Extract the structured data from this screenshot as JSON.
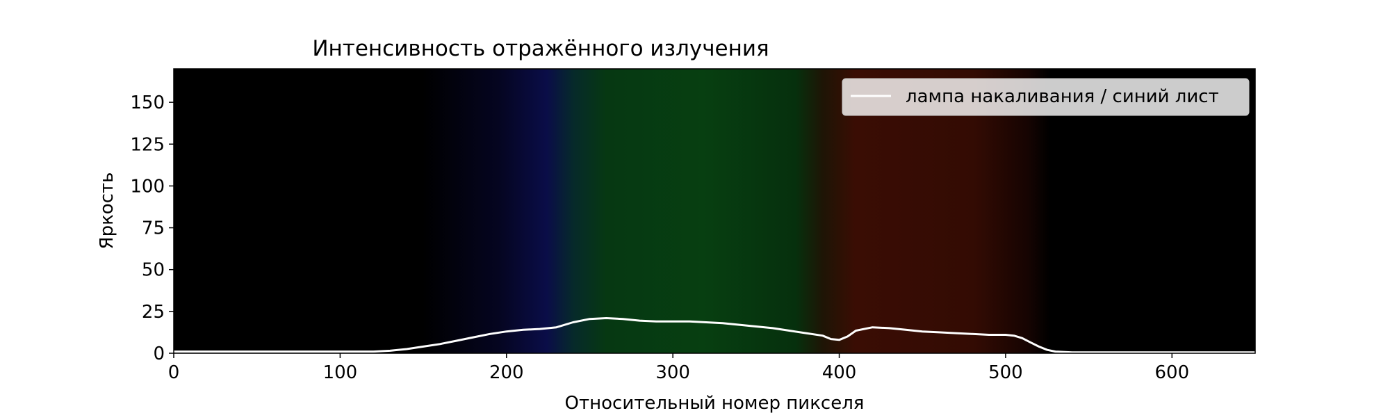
{
  "chart_data": {
    "type": "line",
    "title": "Интенсивность отражённого излучения",
    "xlabel": "Относительный номер пикселя",
    "ylabel": "Яркость",
    "xlim": [
      0,
      650
    ],
    "ylim": [
      0,
      170
    ],
    "xticks": [
      0,
      100,
      200,
      300,
      400,
      500,
      600
    ],
    "yticks": [
      0,
      25,
      50,
      75,
      100,
      125,
      150
    ],
    "grid": false,
    "legend_position": "top-right",
    "background": "spectrum photograph (black → blue → green → red → black)",
    "series": [
      {
        "name": "лампа накаливания / синий лист",
        "color": "#ffffff",
        "x": [
          0,
          50,
          100,
          120,
          130,
          140,
          150,
          160,
          170,
          180,
          190,
          200,
          210,
          220,
          230,
          240,
          250,
          260,
          270,
          280,
          290,
          300,
          310,
          320,
          330,
          340,
          350,
          360,
          370,
          380,
          390,
          395,
          400,
          405,
          410,
          420,
          430,
          440,
          450,
          460,
          470,
          480,
          490,
          500,
          505,
          510,
          515,
          520,
          525,
          530,
          540,
          560,
          600,
          650
        ],
        "y": [
          1,
          1,
          1,
          1,
          1.5,
          2.5,
          4,
          5.5,
          7.5,
          9.5,
          11.5,
          13,
          14,
          14.5,
          15.5,
          18.5,
          20.5,
          21,
          20.5,
          19.5,
          19,
          19,
          19,
          18.5,
          18,
          17,
          16,
          15,
          13.5,
          12,
          10.5,
          8.5,
          8,
          10,
          13.5,
          15.5,
          15,
          14,
          13,
          12.5,
          12,
          11.5,
          11,
          11,
          10.5,
          9,
          6.5,
          4,
          2,
          1,
          0.5,
          0.5,
          0.5,
          0.5
        ]
      }
    ]
  }
}
